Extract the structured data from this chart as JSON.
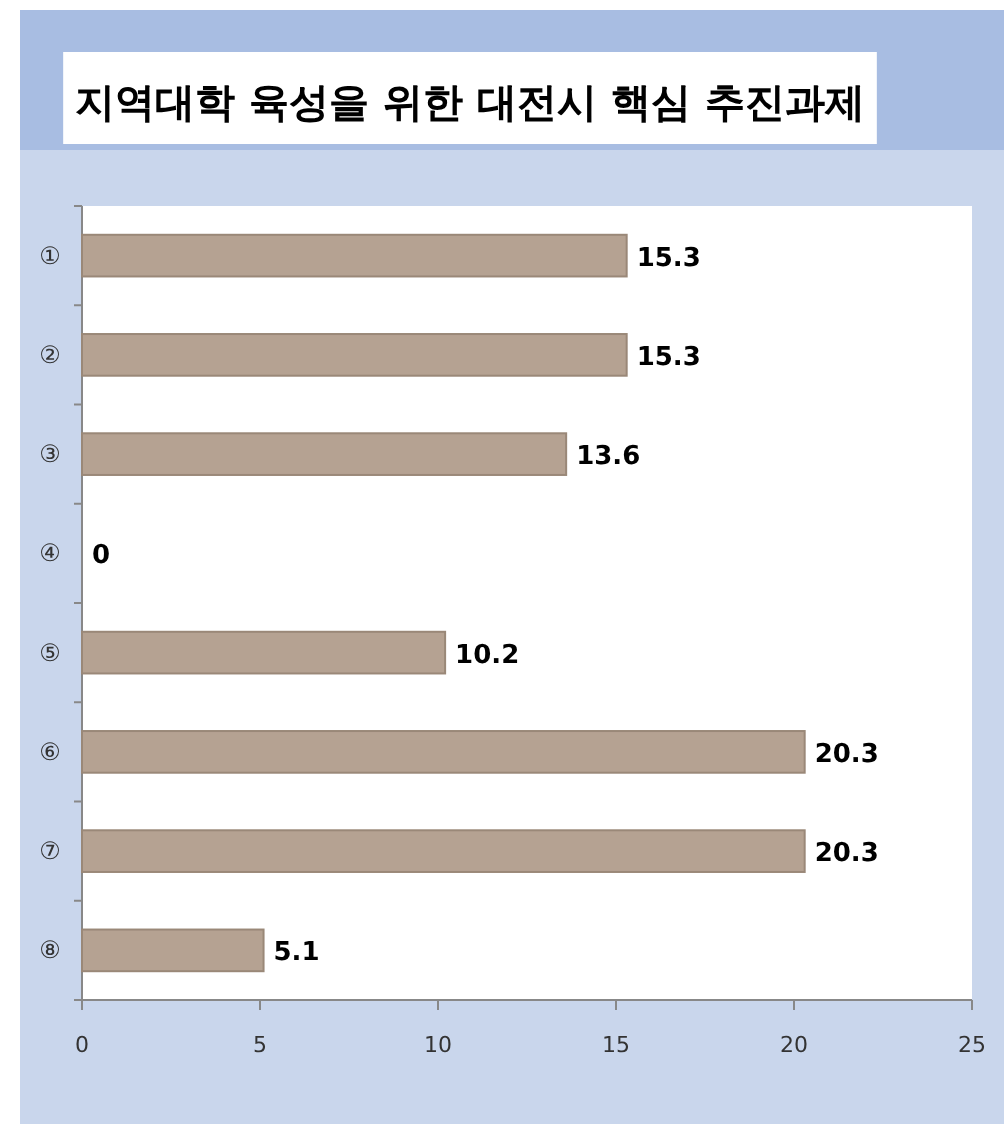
{
  "chart_data": {
    "type": "bar",
    "orientation": "horizontal",
    "title": "지역대학 육성을 위한 대전시 핵심 추진과제",
    "categories": [
      "①",
      "②",
      "③",
      "④",
      "⑤",
      "⑥",
      "⑦",
      "⑧"
    ],
    "values": [
      15.3,
      15.3,
      13.6,
      0,
      10.2,
      20.3,
      20.3,
      5.1
    ],
    "color": "#b5a292",
    "data_labels": true,
    "xlim": [
      0,
      25
    ],
    "xticks": [
      0,
      5,
      10,
      15,
      20,
      25
    ]
  }
}
